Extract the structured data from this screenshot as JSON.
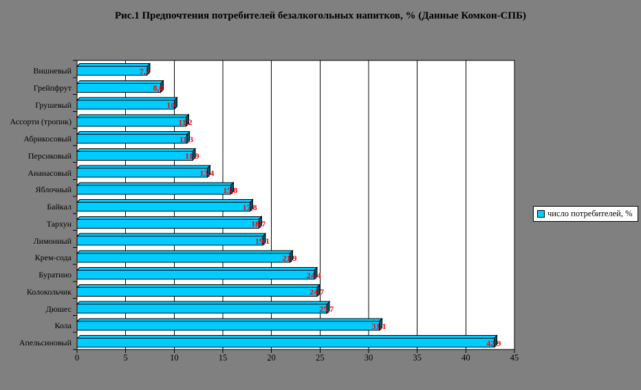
{
  "page": {
    "background": "#808080"
  },
  "chart_data": {
    "type": "bar",
    "orientation": "horizontal",
    "title": "Рис.1 Предпочтения потребителей безалкогольных напитков, % (Данные Комкон-СПБ)",
    "legend": {
      "label": "число потребителей, %",
      "marker_color": "#00CCFF",
      "position": "right"
    },
    "categories": [
      "Вишневый",
      "Грейпфрут",
      "Грушевый",
      "Ассорти (тропик)",
      "Абрикосовый",
      "Персиковый",
      "Ананасовый",
      "Яблочный",
      "Байкал",
      "Тархун",
      "Лимонный",
      "Крем-сода",
      "Буратино",
      "Колокольчик",
      "Дюшес",
      "Кола",
      "Апельсиновый"
    ],
    "values": [
      7.2,
      8.6,
      10,
      11.2,
      11.3,
      11.9,
      13.4,
      15.8,
      17.8,
      18.7,
      19.1,
      21.9,
      24.4,
      24.7,
      25.7,
      31.1,
      42.9
    ],
    "value_labels": [
      "7,2",
      "8,6",
      "10",
      "11,2",
      "11,3",
      "11,9",
      "13,4",
      "15,8",
      "17,8",
      "18,7",
      "19,1",
      "21,9",
      "24,4",
      "24,7",
      "25,7",
      "31,1",
      "42,9"
    ],
    "xlabel": "",
    "ylabel": "",
    "xlim": [
      0,
      45
    ],
    "xticks": [
      0,
      5,
      10,
      15,
      20,
      25,
      30,
      35,
      40,
      45
    ],
    "grid": true,
    "colors": {
      "bar_fill": "#00CCFF",
      "bar_side": "#00566B",
      "bar_border": "#000000",
      "value_label": "#FF0000",
      "plot_bg": "#FFFFFF",
      "axis": "#000000",
      "text": "#000000"
    }
  }
}
